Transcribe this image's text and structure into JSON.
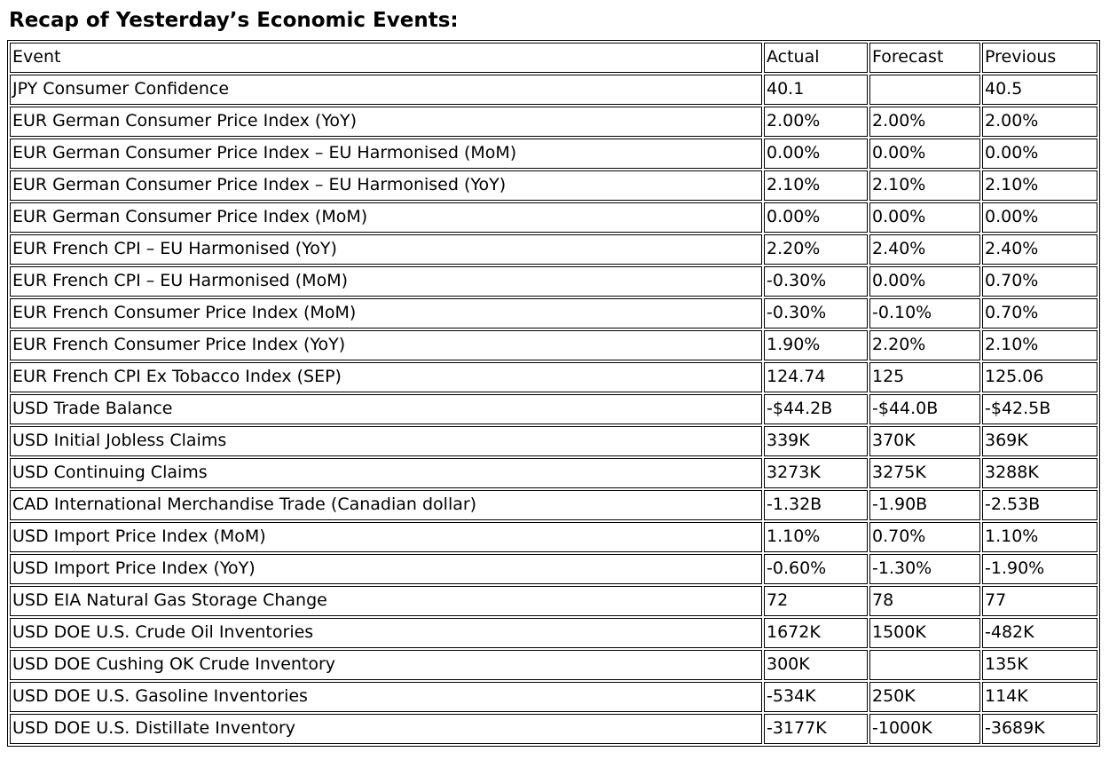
{
  "page_title": "Recap of Yesterday’s Economic Events:",
  "colors": {
    "text": "#000000",
    "border": "#000000",
    "background": "#ffffff"
  },
  "table": {
    "headers": [
      "Event",
      "Actual",
      "Forecast",
      "Previous"
    ],
    "rows": [
      [
        "JPY Consumer Confidence",
        "40.1",
        "",
        "40.5"
      ],
      [
        "EUR German Consumer Price Index (YoY)",
        "2.00%",
        "2.00%",
        "2.00%"
      ],
      [
        "EUR German Consumer Price Index – EU Harmonised (MoM)",
        "0.00%",
        "0.00%",
        "0.00%"
      ],
      [
        "EUR German Consumer Price Index – EU Harmonised (YoY)",
        "2.10%",
        "2.10%",
        "2.10%"
      ],
      [
        "EUR German Consumer Price Index (MoM)",
        "0.00%",
        "0.00%",
        "0.00%"
      ],
      [
        "EUR French CPI – EU Harmonised (YoY)",
        "2.20%",
        "2.40%",
        "2.40%"
      ],
      [
        "EUR French CPI – EU Harmonised (MoM)",
        "-0.30%",
        "0.00%",
        "0.70%"
      ],
      [
        "EUR French Consumer Price Index (MoM)",
        "-0.30%",
        "-0.10%",
        "0.70%"
      ],
      [
        "EUR French Consumer Price Index (YoY)",
        "1.90%",
        "2.20%",
        "2.10%"
      ],
      [
        "EUR French CPI Ex Tobacco Index (SEP)",
        "124.74",
        "125",
        "125.06"
      ],
      [
        "USD Trade Balance",
        "-$44.2B",
        "-$44.0B",
        "-$42.5B"
      ],
      [
        "USD Initial Jobless Claims",
        "339K",
        "370K",
        "369K"
      ],
      [
        "USD Continuing Claims",
        "3273K",
        "3275K",
        "3288K"
      ],
      [
        "CAD International Merchandise Trade (Canadian dollar)",
        "-1.32B",
        "-1.90B",
        "-2.53B"
      ],
      [
        "USD Import Price Index (MoM)",
        "1.10%",
        "0.70%",
        "1.10%"
      ],
      [
        "USD Import Price Index (YoY)",
        "-0.60%",
        "-1.30%",
        "-1.90%"
      ],
      [
        "USD EIA Natural Gas Storage Change",
        "72",
        "78",
        "77"
      ],
      [
        "USD DOE U.S. Crude Oil Inventories",
        "1672K",
        "1500K",
        "-482K"
      ],
      [
        "USD DOE Cushing OK Crude Inventory",
        "300K",
        "",
        "135K"
      ],
      [
        "USD DOE U.S. Gasoline Inventories",
        "-534K",
        "250K",
        "114K"
      ],
      [
        "USD DOE U.S. Distillate Inventory",
        "-3177K",
        "-1000K",
        "-3689K"
      ]
    ]
  }
}
